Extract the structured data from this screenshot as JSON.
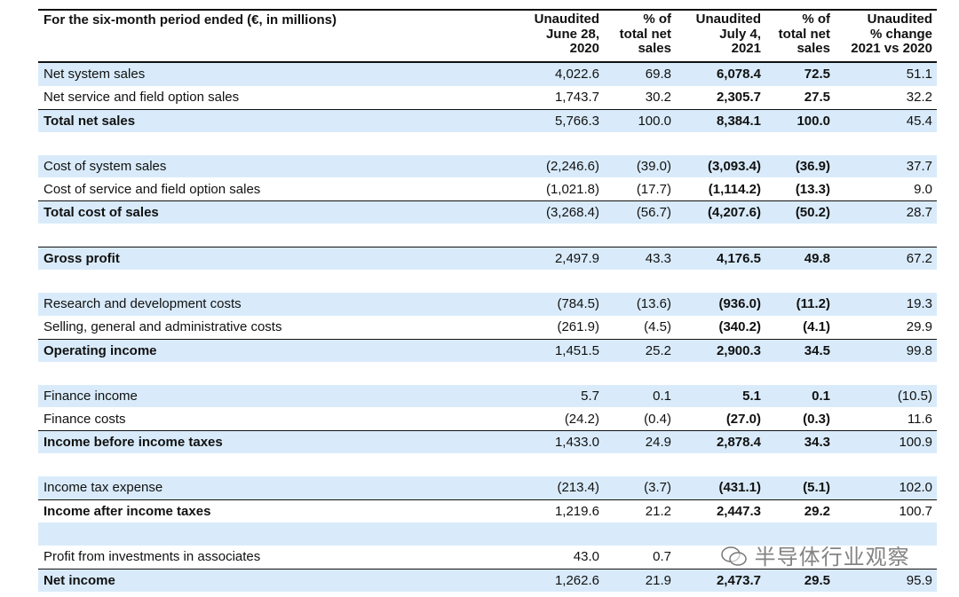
{
  "header": {
    "title": "For the six-month period ended (€, in millions)",
    "columns": [
      [
        "Unaudited",
        "June 28,",
        "2020"
      ],
      [
        "% of",
        "total net",
        "sales"
      ],
      [
        "Unaudited",
        "July 4,",
        "2021"
      ],
      [
        "% of",
        "total net",
        "sales"
      ],
      [
        "Unaudited",
        "% change",
        "2021 vs 2020"
      ]
    ]
  },
  "sections": [
    [
      {
        "label": "Net system sales",
        "values": [
          "4,022.6",
          "69.8",
          "6,078.4",
          "72.5",
          "51.1"
        ]
      },
      {
        "label": "Net service and field option sales",
        "values": [
          "1,743.7",
          "30.2",
          "2,305.7",
          "27.5",
          "32.2"
        ]
      },
      {
        "label": "Total net sales",
        "values": [
          "5,766.3",
          "100.0",
          "8,384.1",
          "100.0",
          "45.4"
        ],
        "total": true
      }
    ],
    [
      {
        "label": "Cost of system sales",
        "values": [
          "(2,246.6)",
          "(39.0)",
          "(3,093.4)",
          "(36.9)",
          "37.7"
        ]
      },
      {
        "label": "Cost of service and field option sales",
        "values": [
          "(1,021.8)",
          "(17.7)",
          "(1,114.2)",
          "(13.3)",
          "9.0"
        ]
      },
      {
        "label": "Total cost of sales",
        "values": [
          "(3,268.4)",
          "(56.7)",
          "(4,207.6)",
          "(50.2)",
          "28.7"
        ],
        "total": true
      }
    ],
    [
      {
        "label": "Gross profit",
        "values": [
          "2,497.9",
          "43.3",
          "4,176.5",
          "49.8",
          "67.2"
        ],
        "total": true
      }
    ],
    [
      {
        "label": "Research and development costs",
        "values": [
          "(784.5)",
          "(13.6)",
          "(936.0)",
          "(11.2)",
          "19.3"
        ]
      },
      {
        "label": "Selling, general and administrative costs",
        "values": [
          "(261.9)",
          "(4.5)",
          "(340.2)",
          "(4.1)",
          "29.9"
        ]
      },
      {
        "label": "Operating income",
        "values": [
          "1,451.5",
          "25.2",
          "2,900.3",
          "34.5",
          "99.8"
        ],
        "total": true
      }
    ],
    [
      {
        "label": "Finance income",
        "values": [
          "5.7",
          "0.1",
          "5.1",
          "0.1",
          "(10.5)"
        ]
      },
      {
        "label": "Finance costs",
        "values": [
          "(24.2)",
          "(0.4)",
          "(27.0)",
          "(0.3)",
          "11.6"
        ]
      },
      {
        "label": "Income before income taxes",
        "values": [
          "1,433.0",
          "24.9",
          "2,878.4",
          "34.3",
          "100.9"
        ],
        "total": true
      }
    ],
    [
      {
        "label": "Income tax expense",
        "values": [
          "(213.4)",
          "(3.7)",
          "(431.1)",
          "(5.1)",
          "102.0"
        ]
      },
      {
        "label": "Income after income taxes",
        "values": [
          "1,219.6",
          "21.2",
          "2,447.3",
          "29.2",
          "100.7"
        ],
        "total": true
      }
    ],
    [
      {
        "label": "Profit from investments in associates",
        "values": [
          "43.0",
          "0.7",
          null,
          null,
          null
        ]
      },
      {
        "label": "Net income",
        "values": [
          "1,262.6",
          "21.9",
          "2,473.7",
          "29.5",
          "95.9"
        ],
        "total": true
      }
    ]
  ],
  "watermark": "半导体行业观察"
}
